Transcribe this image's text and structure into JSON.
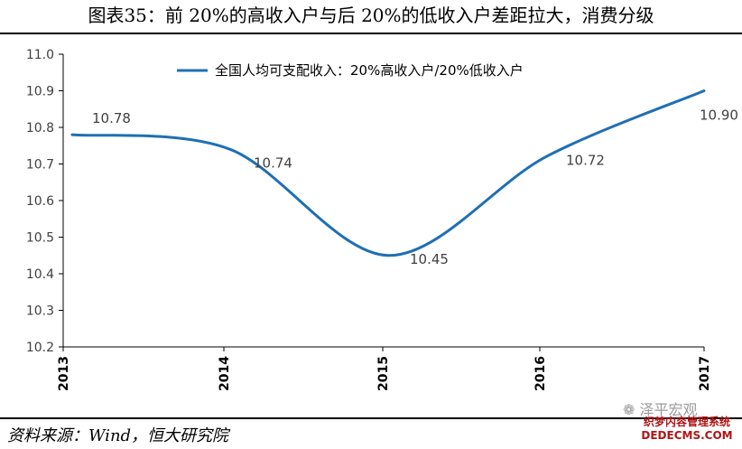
{
  "title": "图表35：前 20%的高收入户与后 20%的低收入户差距拉大，消费分级",
  "source": "资料来源：Wind，恒大研究院",
  "watermark": {
    "wechat": "泽平宏观",
    "site": "织梦内容管理系统",
    "domain": "DEDECMS.COM"
  },
  "colors": {
    "series": "#1f6fb5",
    "axis": "#000000"
  },
  "chart_data": {
    "type": "line",
    "title": "图表35：前 20%的高收入户与后 20%的低收入户差距拉大，消费分级",
    "categories": [
      "2013",
      "2014",
      "2015",
      "2016",
      "2017"
    ],
    "series": [
      {
        "name": "全国人均可支配收入：20%高收入户/20%低收入户",
        "values": [
          10.78,
          10.74,
          10.45,
          10.72,
          10.9
        ],
        "labels": [
          "10.78",
          "10.74",
          "10.45",
          "10.72",
          "10.90"
        ]
      }
    ],
    "ylim": [
      10.2,
      11.0
    ],
    "yticks": [
      "10.2",
      "10.3",
      "10.4",
      "10.5",
      "10.6",
      "10.7",
      "10.8",
      "10.9",
      "11.0"
    ],
    "xlabel": "",
    "ylabel": "",
    "grid": false,
    "legend": "top-center",
    "smooth": true
  }
}
